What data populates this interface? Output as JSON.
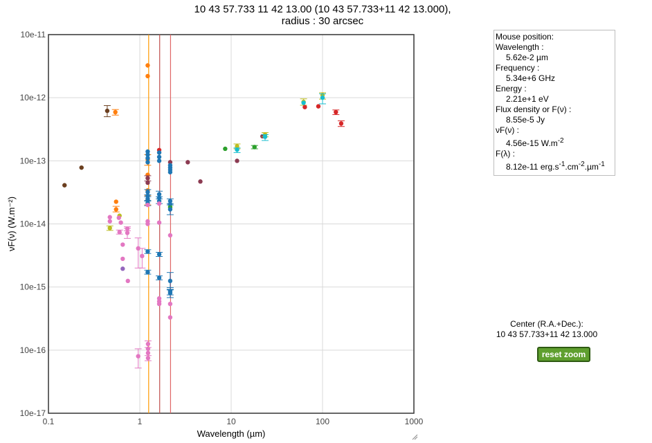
{
  "header": {
    "title_line1": "10 43 57.733 11 42 13.00 (10 43 57.733+11 42 13.000),",
    "title_line2": "radius : 30 arcsec"
  },
  "mouse_panel": {
    "heading": "Mouse position:",
    "wavelength_label": "Wavelength :",
    "wavelength_value": "5.62e-2 µm",
    "frequency_label": "Frequency :",
    "frequency_value": "5.34e+6 GHz",
    "energy_label": "Energy :",
    "energy_value": "2.21e+1 eV",
    "flux_label": "Flux density or F(ν) :",
    "flux_value": "8.55e-5 Jy",
    "nufnu_label": "νF(ν) :",
    "nufnu_value": "4.56e-15 W.m",
    "nufnu_unit_sup": "-2",
    "flambda_label": "F(λ) :",
    "flambda_value_a": "8.12e-11 erg.s",
    "flambda_sup1": "-1",
    "flambda_value_b": ".cm",
    "flambda_sup2": "-2",
    "flambda_value_c": ".µm",
    "flambda_sup3": "-1"
  },
  "center_panel": {
    "label": "Center (R.A.+Dec.):",
    "value": "10 43 57.733+11 42 13.000"
  },
  "controls": {
    "reset_label": "reset zoom"
  },
  "chart_data": {
    "type": "scatter",
    "xscale": "log",
    "yscale": "log",
    "xlabel": "Wavelength (µm)",
    "ylabel": "νF(ν) (W.m⁻²)",
    "xlim": [
      0.1,
      1000
    ],
    "ylim": [
      1e-17,
      1e-11
    ],
    "x_ticks": [
      "0.1",
      "1",
      "10",
      "100",
      "1000"
    ],
    "y_ticks": [
      "10e-17",
      "10e-16",
      "10e-15",
      "10e-14",
      "10e-13",
      "10e-12",
      "10e-11"
    ],
    "grid": true,
    "vertical_lines": [
      {
        "x": 1.25,
        "color": "#ff9900"
      },
      {
        "x": 1.65,
        "color": "#c0504d"
      },
      {
        "x": 2.17,
        "color": "#e06666"
      }
    ],
    "colors": {
      "brown": "#6b3f1f",
      "orange": "#ff7f0e",
      "olive": "#bcbd22",
      "pink": "#e377c2",
      "purple": "#9467bd",
      "blue": "#1f77b4",
      "maroon": "#8c3b52",
      "green": "#2ca02c",
      "teal": "#17becf",
      "red": "#d62728"
    },
    "points": [
      {
        "x": 0.15,
        "y": 4.1e-14,
        "c": "brown"
      },
      {
        "x": 0.23,
        "y": 7.8e-14,
        "c": "brown"
      },
      {
        "x": 0.44,
        "y": 6.2e-13,
        "c": "brown",
        "ylo": 5e-13,
        "yhi": 7.5e-13
      },
      {
        "x": 0.54,
        "y": 5.9e-13,
        "c": "orange",
        "ylo": 5.3e-13,
        "yhi": 6.5e-13
      },
      {
        "x": 0.55,
        "y": 2.25e-14,
        "c": "orange"
      },
      {
        "x": 0.55,
        "y": 1.7e-14,
        "c": "orange",
        "ylo": 1.55e-14,
        "yhi": 1.9e-14
      },
      {
        "x": 0.6,
        "y": 1.35e-14,
        "c": "olive"
      },
      {
        "x": 0.47,
        "y": 8.6e-15,
        "c": "olive",
        "ylo": 7.9e-15,
        "yhi": 9.3e-15
      },
      {
        "x": 0.47,
        "y": 1.28e-14,
        "c": "pink"
      },
      {
        "x": 0.47,
        "y": 1.1e-14,
        "c": "pink"
      },
      {
        "x": 0.59,
        "y": 1.25e-14,
        "c": "pink"
      },
      {
        "x": 0.62,
        "y": 1.05e-14,
        "c": "pink"
      },
      {
        "x": 0.6,
        "y": 7.4e-15,
        "c": "pink",
        "ylo": 6.9e-15,
        "yhi": 8e-15
      },
      {
        "x": 0.73,
        "y": 8.4e-15,
        "c": "pink",
        "ylo": 7.8e-15,
        "yhi": 9e-15
      },
      {
        "x": 0.73,
        "y": 7.2e-15,
        "c": "pink",
        "ylo": 5.9e-15,
        "yhi": 8.5e-15
      },
      {
        "x": 0.65,
        "y": 4.7e-15,
        "c": "pink"
      },
      {
        "x": 0.65,
        "y": 2.8e-15,
        "c": "pink"
      },
      {
        "x": 0.74,
        "y": 1.25e-15,
        "c": "pink"
      },
      {
        "x": 0.65,
        "y": 1.95e-15,
        "c": "purple"
      },
      {
        "x": 0.96,
        "y": 4.1e-15,
        "c": "pink",
        "ylo": 2e-15,
        "yhi": 6e-15
      },
      {
        "x": 1.06,
        "y": 3.1e-15,
        "c": "pink",
        "ylo": 2e-15,
        "yhi": 4.1e-15
      },
      {
        "x": 0.96,
        "y": 8e-17,
        "c": "pink",
        "ylo": 5.2e-17,
        "yhi": 1.05e-16
      },
      {
        "x": 1.23,
        "y": 1.25e-16,
        "c": "pink",
        "ylo": 1.1e-16,
        "yhi": 1.4e-16
      },
      {
        "x": 1.23,
        "y": 1.05e-16,
        "c": "pink"
      },
      {
        "x": 1.23,
        "y": 9e-17,
        "c": "pink"
      },
      {
        "x": 1.23,
        "y": 7.5e-17,
        "c": "pink",
        "ylo": 6.8e-17,
        "yhi": 8.2e-17
      },
      {
        "x": 1.22,
        "y": 3.25e-12,
        "c": "orange"
      },
      {
        "x": 1.22,
        "y": 2.2e-12,
        "c": "orange"
      },
      {
        "x": 1.22,
        "y": 1.05e-13,
        "c": "orange",
        "ylo": 8.5e-14,
        "yhi": 1.25e-13
      },
      {
        "x": 1.22,
        "y": 6e-14,
        "c": "orange"
      },
      {
        "x": 1.22,
        "y": 3.4e-14,
        "c": "orange"
      },
      {
        "x": 1.22,
        "y": 2.4e-14,
        "c": "orange",
        "ylo": 2e-14,
        "yhi": 2.8e-14
      },
      {
        "x": 1.22,
        "y": 1.4e-13,
        "c": "blue"
      },
      {
        "x": 1.22,
        "y": 1.25e-13,
        "c": "blue"
      },
      {
        "x": 1.22,
        "y": 1.1e-13,
        "c": "blue"
      },
      {
        "x": 1.22,
        "y": 9.5e-14,
        "c": "blue"
      },
      {
        "x": 1.22,
        "y": 3.2e-14,
        "c": "blue",
        "ylo": 2.9e-14,
        "yhi": 3.5e-14
      },
      {
        "x": 1.22,
        "y": 2.8e-14,
        "c": "blue"
      },
      {
        "x": 1.22,
        "y": 2.5e-14,
        "c": "blue",
        "ylo": 2.3e-14,
        "yhi": 2.7e-14
      },
      {
        "x": 1.22,
        "y": 2.15e-14,
        "c": "blue",
        "ylo": 1.95e-14,
        "yhi": 2.35e-14
      },
      {
        "x": 1.22,
        "y": 3.65e-15,
        "c": "blue",
        "ylo": 3.4e-15,
        "yhi": 3.9e-15
      },
      {
        "x": 1.22,
        "y": 1.72e-15,
        "c": "blue",
        "ylo": 1.6e-15,
        "yhi": 1.85e-15
      },
      {
        "x": 1.22,
        "y": 1.1e-14,
        "c": "pink"
      },
      {
        "x": 1.22,
        "y": 1e-14,
        "c": "pink"
      },
      {
        "x": 1.22,
        "y": 2e-14,
        "c": "pink"
      },
      {
        "x": 1.22,
        "y": 4.5e-14,
        "c": "maroon"
      },
      {
        "x": 1.22,
        "y": 5.3e-14,
        "c": "maroon",
        "ylo": 4.8e-14,
        "yhi": 5.8e-14
      },
      {
        "x": 1.63,
        "y": 1.48e-13,
        "c": "red"
      },
      {
        "x": 1.63,
        "y": 1.35e-13,
        "c": "blue"
      },
      {
        "x": 1.63,
        "y": 1.15e-13,
        "c": "blue"
      },
      {
        "x": 1.63,
        "y": 1e-13,
        "c": "blue"
      },
      {
        "x": 1.63,
        "y": 2.95e-14,
        "c": "blue",
        "ylo": 2.7e-14,
        "yhi": 3.3e-14
      },
      {
        "x": 1.63,
        "y": 2.6e-14,
        "c": "blue"
      },
      {
        "x": 1.63,
        "y": 2.3e-14,
        "c": "blue",
        "ylo": 2.1e-14,
        "yhi": 2.5e-14
      },
      {
        "x": 1.63,
        "y": 2.1e-14,
        "c": "pink"
      },
      {
        "x": 1.63,
        "y": 1.05e-14,
        "c": "pink"
      },
      {
        "x": 1.63,
        "y": 3.3e-15,
        "c": "blue",
        "ylo": 3.05e-15,
        "yhi": 3.55e-15
      },
      {
        "x": 1.63,
        "y": 1.4e-15,
        "c": "blue",
        "ylo": 1.3e-15,
        "yhi": 1.5e-15
      },
      {
        "x": 1.63,
        "y": 6.6e-16,
        "c": "pink"
      },
      {
        "x": 1.63,
        "y": 5.9e-16,
        "c": "pink"
      },
      {
        "x": 1.63,
        "y": 5.4e-16,
        "c": "pink"
      },
      {
        "x": 2.15,
        "y": 9.5e-14,
        "c": "maroon"
      },
      {
        "x": 2.15,
        "y": 8.5e-14,
        "c": "blue"
      },
      {
        "x": 2.15,
        "y": 7.8e-14,
        "c": "blue"
      },
      {
        "x": 2.15,
        "y": 7.2e-14,
        "c": "blue"
      },
      {
        "x": 2.15,
        "y": 6.6e-14,
        "c": "blue"
      },
      {
        "x": 2.15,
        "y": 2.3e-14,
        "c": "blue",
        "ylo": 2.1e-14,
        "yhi": 2.5e-14
      },
      {
        "x": 2.15,
        "y": 2.05e-14,
        "c": "blue"
      },
      {
        "x": 2.15,
        "y": 1.85e-14,
        "c": "green"
      },
      {
        "x": 2.15,
        "y": 1.7e-14,
        "c": "blue",
        "ylo": 1.4e-14,
        "yhi": 2e-14
      },
      {
        "x": 2.15,
        "y": 6.6e-15,
        "c": "pink"
      },
      {
        "x": 2.15,
        "y": 1.25e-15,
        "c": "blue",
        "ylo": 9e-16,
        "yhi": 1.7e-15
      },
      {
        "x": 2.15,
        "y": 8.6e-16,
        "c": "blue",
        "ylo": 7.5e-16,
        "yhi": 9.8e-16
      },
      {
        "x": 2.15,
        "y": 8e-16,
        "c": "blue",
        "ylo": 6.8e-16,
        "yhi": 9.2e-16
      },
      {
        "x": 2.15,
        "y": 5.4e-16,
        "c": "pink"
      },
      {
        "x": 2.15,
        "y": 3.3e-16,
        "c": "pink"
      },
      {
        "x": 3.35,
        "y": 9.5e-14,
        "c": "maroon"
      },
      {
        "x": 4.6,
        "y": 4.7e-14,
        "c": "maroon"
      },
      {
        "x": 8.6,
        "y": 1.55e-13,
        "c": "green"
      },
      {
        "x": 11.6,
        "y": 1.7e-13,
        "c": "olive",
        "ylo": 1.55e-13,
        "yhi": 1.85e-13
      },
      {
        "x": 11.6,
        "y": 1.5e-13,
        "c": "teal",
        "ylo": 1.35e-13,
        "yhi": 1.6e-13
      },
      {
        "x": 11.6,
        "y": 1e-13,
        "c": "maroon"
      },
      {
        "x": 18.0,
        "y": 1.65e-13,
        "c": "green",
        "ylo": 1.55e-13,
        "yhi": 1.75e-13
      },
      {
        "x": 22.0,
        "y": 2.45e-13,
        "c": "maroon"
      },
      {
        "x": 23.5,
        "y": 2.6e-13,
        "c": "olive",
        "ylo": 2.4e-13,
        "yhi": 2.8e-13
      },
      {
        "x": 23.5,
        "y": 2.4e-13,
        "c": "teal",
        "ylo": 2.1e-13,
        "yhi": 2.6e-13
      },
      {
        "x": 62.0,
        "y": 8.6e-13,
        "c": "olive",
        "ylo": 7.6e-13,
        "yhi": 9.6e-13
      },
      {
        "x": 62.0,
        "y": 8.3e-13,
        "c": "teal"
      },
      {
        "x": 64.0,
        "y": 7.1e-13,
        "c": "red"
      },
      {
        "x": 90.0,
        "y": 7.3e-13,
        "c": "red"
      },
      {
        "x": 100.0,
        "y": 1.1e-12,
        "c": "olive",
        "ylo": 9.5e-13,
        "yhi": 1.2e-12
      },
      {
        "x": 100.0,
        "y": 1e-12,
        "c": "teal",
        "ylo": 8e-13,
        "yhi": 1.15e-12
      },
      {
        "x": 140.0,
        "y": 5.9e-13,
        "c": "red",
        "ylo": 5.4e-13,
        "yhi": 6.4e-13
      },
      {
        "x": 160.0,
        "y": 3.9e-13,
        "c": "red",
        "ylo": 3.5e-13,
        "yhi": 4.3e-13
      }
    ]
  }
}
